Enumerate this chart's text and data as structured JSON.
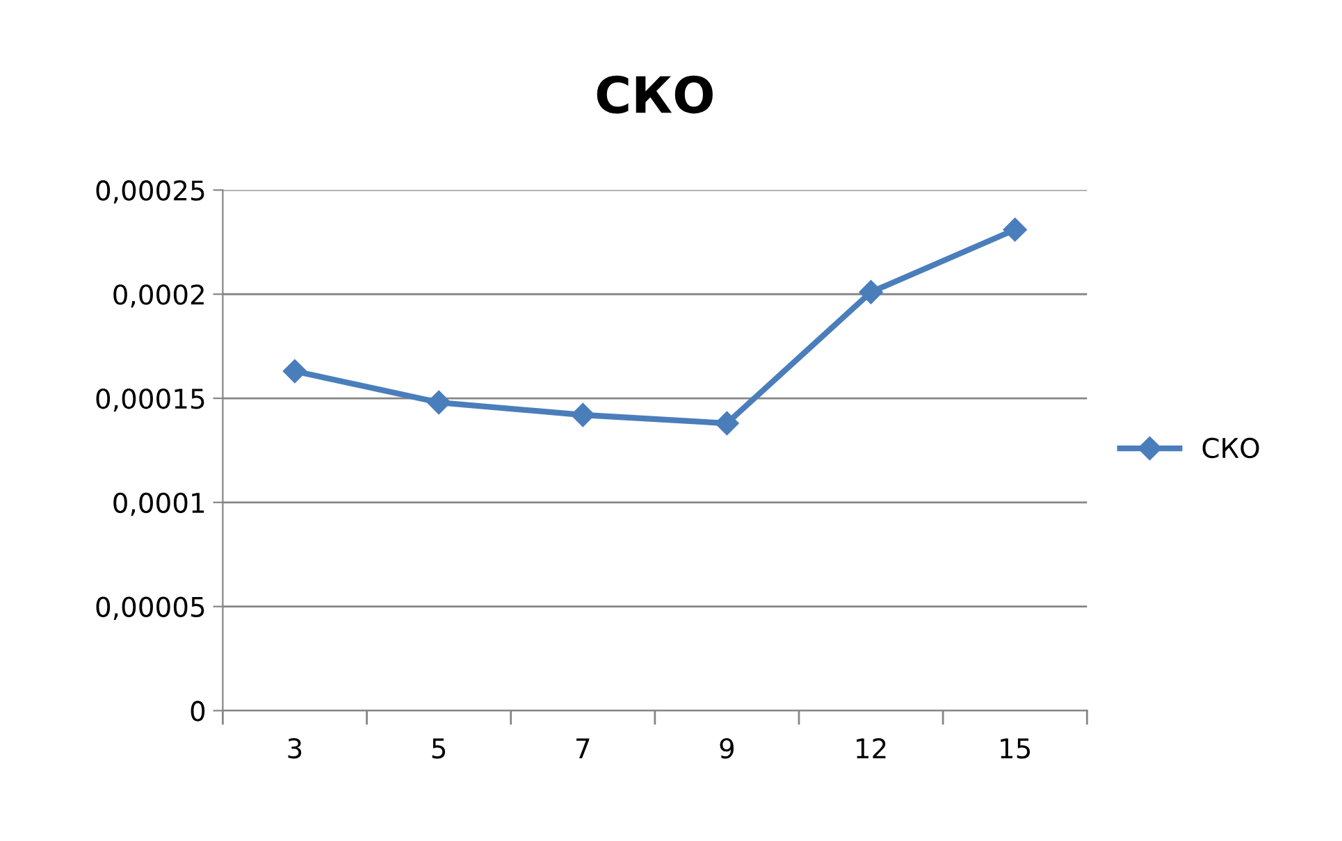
{
  "chart_data": {
    "type": "line",
    "title": "СКО",
    "categories": [
      "3",
      "5",
      "7",
      "9",
      "12",
      "15"
    ],
    "series": [
      {
        "name": "СКО",
        "color": "#4a7ebb",
        "values": [
          0.000163,
          0.000148,
          0.000142,
          0.000138,
          0.000201,
          0.000231
        ]
      }
    ],
    "ylim": [
      0,
      0.00025
    ],
    "yticks": [
      {
        "value": 0,
        "label": "0"
      },
      {
        "value": 5e-05,
        "label": "0,00005"
      },
      {
        "value": 0.0001,
        "label": "0,0001"
      },
      {
        "value": 0.00015,
        "label": "0,00015"
      },
      {
        "value": 0.0002,
        "label": "0,0002"
      },
      {
        "value": 0.00025,
        "label": "0,00025"
      }
    ],
    "grid": "y",
    "legend": "right",
    "marker": "diamond",
    "line_style": "solid"
  }
}
